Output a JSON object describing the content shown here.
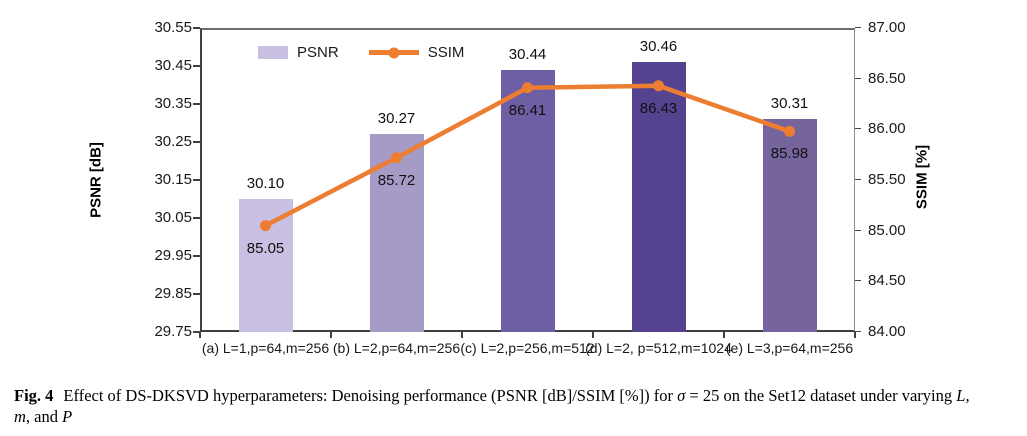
{
  "chart_data": {
    "type": "bar",
    "title": "",
    "categories": [
      "(a) L=1,p=64,m=256",
      "(b) L=2,p=64,m=256",
      "(c) L=2,p=256,m=512",
      "(d) L=2, p=512,m=1024",
      "(e) L=3,p=64,m=256"
    ],
    "series": [
      {
        "name": "PSNR",
        "type": "bar",
        "axis": "left",
        "values": [
          30.1,
          30.27,
          30.44,
          30.46,
          30.31
        ],
        "bar_colors": [
          "#c9bfe3",
          "#a69bc7",
          "#6e5ea3",
          "#554390",
          "#76649d"
        ]
      },
      {
        "name": "SSIM",
        "type": "line",
        "axis": "right",
        "values": [
          85.05,
          85.72,
          86.41,
          86.43,
          85.98
        ],
        "color": "#ed7d31"
      }
    ],
    "left_axis": {
      "title": "PSNR [dB]",
      "min": 29.75,
      "max": 30.55,
      "step": 0.1,
      "decimals": 2
    },
    "right_axis": {
      "title": "SSIM [%]",
      "min": 84.0,
      "max": 87.0,
      "step": 0.5,
      "decimals": 2
    },
    "legend": {
      "items": [
        "PSNR",
        "SSIM"
      ],
      "position": "top-left-inside"
    },
    "grid": false,
    "data_label_decimals": 2
  },
  "caption": {
    "segments": [
      {
        "text": "Fig. 4",
        "bold": true
      },
      {
        "gap": true
      },
      {
        "text": "Effect of DS-DKSVD hyperparameters: Denoising performance (PSNR [dB]/SSIM [%]) for "
      },
      {
        "text": "σ",
        "italic": true
      },
      {
        "text": " = 25 on the Set12 dataset under varying "
      },
      {
        "text": "L",
        "italic": true
      },
      {
        "text": ","
      },
      {
        "break": true
      },
      {
        "text": "m",
        "italic": true
      },
      {
        "text": ", and "
      },
      {
        "text": "P",
        "italic": true
      }
    ]
  }
}
